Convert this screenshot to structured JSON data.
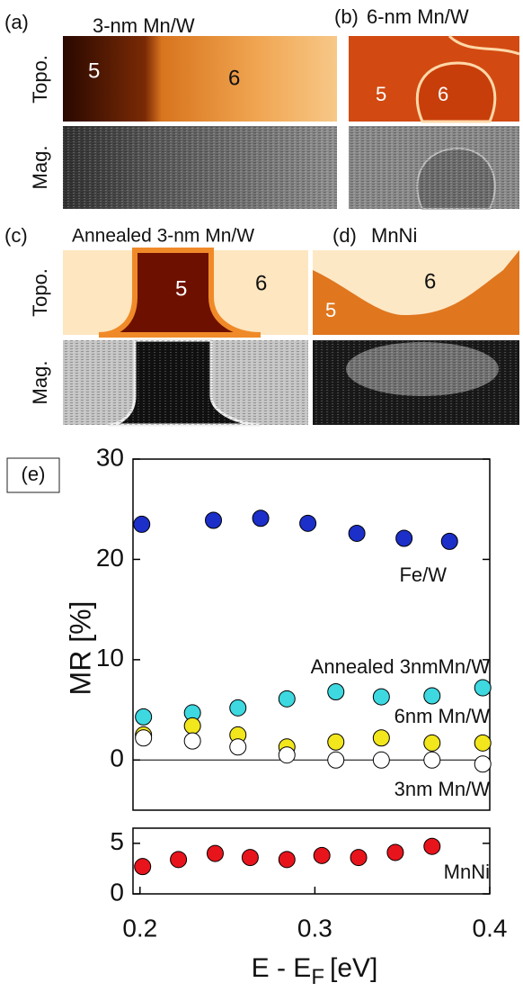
{
  "rows": [
    {
      "topo": "Topo.",
      "mag": "Mag."
    },
    {
      "topo": "Topo.",
      "mag": "Mag."
    }
  ],
  "panels": [
    {
      "label": "(a)",
      "title": "3-nm Mn/W",
      "numbers": [
        "5",
        "6"
      ]
    },
    {
      "label": "(b)",
      "title": "6-nm Mn/W",
      "numbers": [
        "5",
        "6"
      ]
    },
    {
      "label": "(c)",
      "title": "Annealed 3-nm Mn/W",
      "numbers": [
        "5",
        "6"
      ]
    },
    {
      "label": "(d)",
      "title": "MnNi",
      "numbers": [
        "5",
        "6"
      ]
    }
  ],
  "chart_data": [
    {
      "type": "scatter",
      "panel_label": "(e)",
      "ylabel": "MR  [%]",
      "xlim": [
        0.196,
        0.4
      ],
      "ylim": [
        -5,
        30
      ],
      "yticks": [
        0,
        10,
        20,
        30
      ],
      "hline": 0,
      "series": [
        {
          "name": "Fe/W",
          "color": "#1c2fc8",
          "x": [
            0.201,
            0.242,
            0.269,
            0.296,
            0.324,
            0.351,
            0.377
          ],
          "values": [
            23.5,
            23.9,
            24.1,
            23.6,
            22.6,
            22.1,
            21.8
          ]
        },
        {
          "name": "Annealed 3nmMn/W",
          "color": "#3dd8e0",
          "x": [
            0.202,
            0.23,
            0.256,
            0.284,
            0.312,
            0.338,
            0.367,
            0.396
          ],
          "values": [
            4.3,
            4.7,
            5.2,
            6.1,
            6.8,
            6.3,
            6.4,
            7.2
          ]
        },
        {
          "name": "6nm Mn/W",
          "color": "#f2e61c",
          "x": [
            0.202,
            0.23,
            0.256,
            0.284,
            0.312,
            0.338,
            0.367,
            0.396
          ],
          "values": [
            2.5,
            3.4,
            2.5,
            1.3,
            1.8,
            2.2,
            1.7,
            1.7
          ]
        },
        {
          "name": "3nm Mn/W",
          "color": "#ffffff",
          "x": [
            0.202,
            0.23,
            0.256,
            0.284,
            0.312,
            0.338,
            0.367,
            0.396
          ],
          "values": [
            2.2,
            1.9,
            1.3,
            0.5,
            0,
            0,
            0,
            -0.4
          ]
        }
      ]
    },
    {
      "type": "scatter",
      "xlabel": "E - E",
      "xlabel_sub": "F",
      "xlabel_unit": "[eV]",
      "xlim": [
        0.196,
        0.4
      ],
      "xticks": [
        0.2,
        0.3,
        0.4
      ],
      "ylim": [
        0,
        6.5
      ],
      "yticks": [
        0,
        5
      ],
      "series": [
        {
          "name": "MnNi",
          "color": "#e8141c",
          "x": [
            0.2015,
            0.222,
            0.243,
            0.263,
            0.284,
            0.304,
            0.325,
            0.346,
            0.367
          ],
          "values": [
            2.7,
            3.4,
            4.0,
            3.6,
            3.4,
            3.8,
            3.6,
            4.1,
            4.7
          ]
        }
      ]
    }
  ]
}
